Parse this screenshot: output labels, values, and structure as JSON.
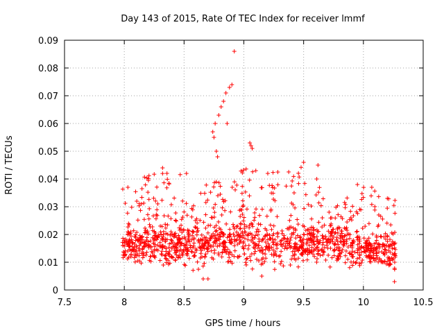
{
  "chart_data": {
    "type": "scatter",
    "title": "Day 143 of 2015, Rate Of TEC Index for receiver lmmf",
    "xlabel": "GPS time / hours",
    "ylabel": "ROTI / TECUs",
    "xlim": [
      7.5,
      10.5
    ],
    "ylim": [
      0,
      0.09
    ],
    "x_ticks": [
      "7.5",
      "8",
      "8.5",
      "9",
      "9.5",
      "10",
      "10.5"
    ],
    "y_ticks": [
      "0",
      "0.01",
      "0.02",
      "0.03",
      "0.04",
      "0.05",
      "0.06",
      "0.07",
      "0.08",
      "0.09"
    ],
    "grid": true,
    "marker": "+",
    "color": "#ff0000",
    "series": [
      {
        "name": "ROTI",
        "x_range": [
          7.98,
          10.27
        ],
        "notable_points": [
          {
            "x": 8.92,
            "y": 0.086
          },
          {
            "x": 8.9,
            "y": 0.074
          },
          {
            "x": 8.88,
            "y": 0.073
          },
          {
            "x": 8.85,
            "y": 0.071
          },
          {
            "x": 8.83,
            "y": 0.068
          },
          {
            "x": 8.81,
            "y": 0.066
          },
          {
            "x": 8.79,
            "y": 0.063
          },
          {
            "x": 8.86,
            "y": 0.06
          },
          {
            "x": 8.76,
            "y": 0.06
          },
          {
            "x": 8.74,
            "y": 0.057
          },
          {
            "x": 8.75,
            "y": 0.055
          },
          {
            "x": 8.77,
            "y": 0.05
          },
          {
            "x": 8.78,
            "y": 0.048
          },
          {
            "x": 9.05,
            "y": 0.053
          },
          {
            "x": 9.06,
            "y": 0.052
          },
          {
            "x": 9.07,
            "y": 0.051
          },
          {
            "x": 9.5,
            "y": 0.046
          },
          {
            "x": 9.62,
            "y": 0.045
          },
          {
            "x": 8.32,
            "y": 0.044
          },
          {
            "x": 8.52,
            "y": 0.042
          },
          {
            "x": 9.1,
            "y": 0.043
          },
          {
            "x": 9.2,
            "y": 0.042
          },
          {
            "x": 9.61,
            "y": 0.04
          },
          {
            "x": 9.95,
            "y": 0.038
          },
          {
            "x": 10.07,
            "y": 0.037
          },
          {
            "x": 8.03,
            "y": 0.037
          },
          {
            "x": 10.2,
            "y": 0.033
          },
          {
            "x": 8.7,
            "y": 0.004
          },
          {
            "x": 8.66,
            "y": 0.004
          },
          {
            "x": 9.15,
            "y": 0.005
          },
          {
            "x": 10.26,
            "y": 0.003
          }
        ],
        "bulk_band": {
          "x": [
            8.0,
            8.25,
            8.5,
            8.75,
            9.0,
            9.25,
            9.5,
            9.75,
            10.0,
            10.25
          ],
          "y_low": [
            0.007,
            0.007,
            0.006,
            0.005,
            0.006,
            0.006,
            0.007,
            0.006,
            0.006,
            0.004
          ],
          "y_typical_high": [
            0.022,
            0.026,
            0.026,
            0.026,
            0.028,
            0.026,
            0.024,
            0.026,
            0.022,
            0.022
          ],
          "y_upper": [
            0.037,
            0.044,
            0.042,
            0.04,
            0.046,
            0.043,
            0.045,
            0.03,
            0.038,
            0.033
          ]
        }
      }
    ]
  }
}
